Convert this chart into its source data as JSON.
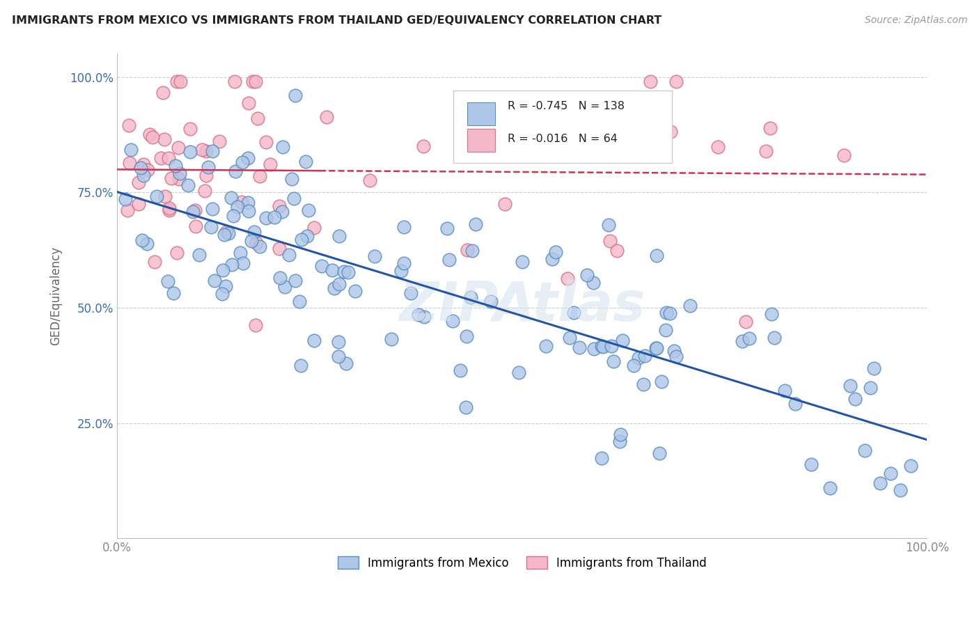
{
  "title": "IMMIGRANTS FROM MEXICO VS IMMIGRANTS FROM THAILAND GED/EQUIVALENCY CORRELATION CHART",
  "source": "Source: ZipAtlas.com",
  "ylabel": "GED/Equivalency",
  "R_mexico": -0.745,
  "N_mexico": 138,
  "R_thailand": -0.016,
  "N_thailand": 64,
  "legend_label_mexico": "Immigrants from Mexico",
  "legend_label_thailand": "Immigrants from Thailand",
  "mexico_color": "#aec6e8",
  "mexico_edge_color": "#5a8fc0",
  "thailand_color": "#f5b8c8",
  "thailand_edge_color": "#d9708a",
  "trendline_mexico_color": "#2255aa",
  "trendline_thailand_color": "#cc3355",
  "watermark": "ZIPAtlas",
  "background_color": "#ffffff",
  "grid_color": "#cccccc"
}
